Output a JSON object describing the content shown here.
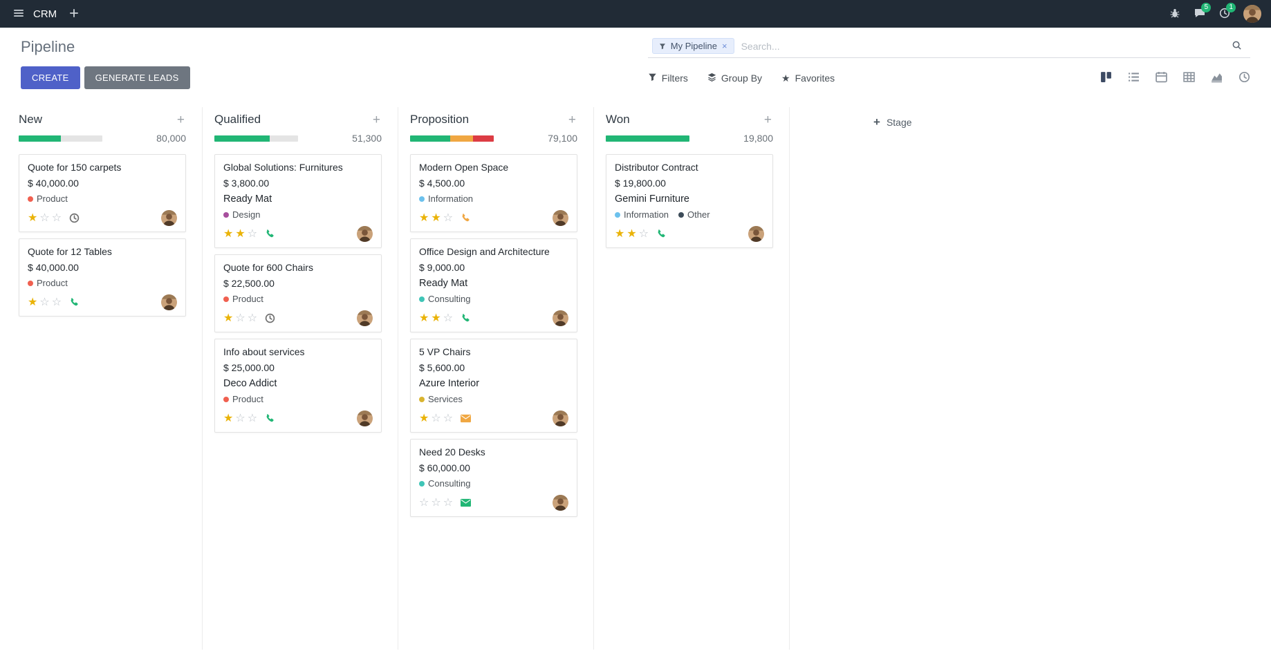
{
  "colors": {
    "accent": "#4f61c8",
    "success": "#21b675",
    "warning": "#f0a742",
    "danger": "#dc3c44",
    "progress_track": "#e4e4e4",
    "star_active": "#eab308"
  },
  "navbar": {
    "app_name": "CRM",
    "messages_badge": "5",
    "activities_badge": "1"
  },
  "control_panel": {
    "title": "Pipeline",
    "create_label": "CREATE",
    "generate_leads_label": "GENERATE LEADS",
    "search_facet": "My Pipeline",
    "search_placeholder": "Search...",
    "filters_label": "Filters",
    "group_by_label": "Group By",
    "favorites_label": "Favorites"
  },
  "board": {
    "add_stage_label": "Stage",
    "columns": [
      {
        "name": "New",
        "total": "80,000",
        "progress": [
          {
            "color": "#21b675",
            "pct": 50
          },
          {
            "color": "#e4e4e4",
            "pct": 50
          }
        ],
        "cards": [
          {
            "title": "Quote for 150 carpets",
            "amount": "$ 40,000.00",
            "partner": "",
            "tags": [
              {
                "label": "Product",
                "color": "#f06050"
              }
            ],
            "stars": 1,
            "activity": {
              "type": "clock",
              "color": "#707070"
            }
          },
          {
            "title": "Quote for 12 Tables",
            "amount": "$ 40,000.00",
            "partner": "",
            "tags": [
              {
                "label": "Product",
                "color": "#f06050"
              }
            ],
            "stars": 1,
            "activity": {
              "type": "phone",
              "color": "#21b675"
            }
          }
        ]
      },
      {
        "name": "Qualified",
        "total": "51,300",
        "progress": [
          {
            "color": "#21b675",
            "pct": 66
          },
          {
            "color": "#e4e4e4",
            "pct": 34
          }
        ],
        "cards": [
          {
            "title": "Global Solutions: Furnitures",
            "amount": "$ 3,800.00",
            "partner": "Ready Mat",
            "tags": [
              {
                "label": "Design",
                "color": "#a74f9d"
              }
            ],
            "stars": 2,
            "activity": {
              "type": "phone",
              "color": "#21b675"
            }
          },
          {
            "title": "Quote for 600 Chairs",
            "amount": "$ 22,500.00",
            "partner": "",
            "tags": [
              {
                "label": "Product",
                "color": "#f06050"
              }
            ],
            "stars": 1,
            "activity": {
              "type": "clock",
              "color": "#707070"
            }
          },
          {
            "title": "Info about services",
            "amount": "$ 25,000.00",
            "partner": "Deco Addict",
            "tags": [
              {
                "label": "Product",
                "color": "#f06050"
              }
            ],
            "stars": 1,
            "activity": {
              "type": "phone",
              "color": "#21b675"
            }
          }
        ]
      },
      {
        "name": "Proposition",
        "total": "79,100",
        "progress": [
          {
            "color": "#21b675",
            "pct": 48
          },
          {
            "color": "#f0a742",
            "pct": 27
          },
          {
            "color": "#dc3c44",
            "pct": 25
          }
        ],
        "cards": [
          {
            "title": "Modern Open Space",
            "amount": "$ 4,500.00",
            "partner": "",
            "tags": [
              {
                "label": "Information",
                "color": "#6cc1ed"
              }
            ],
            "stars": 2,
            "activity": {
              "type": "phone",
              "color": "#f0a742"
            }
          },
          {
            "title": "Office Design and Architecture",
            "amount": "$ 9,000.00",
            "partner": "Ready Mat",
            "tags": [
              {
                "label": "Consulting",
                "color": "#3fc5b7"
              }
            ],
            "stars": 2,
            "activity": {
              "type": "phone",
              "color": "#21b675"
            }
          },
          {
            "title": "5 VP Chairs",
            "amount": "$ 5,600.00",
            "partner": "Azure Interior",
            "tags": [
              {
                "label": "Services",
                "color": "#d9b430"
              }
            ],
            "stars": 1,
            "activity": {
              "type": "envelope",
              "color": "#f0a742"
            }
          },
          {
            "title": "Need 20 Desks",
            "amount": "$ 60,000.00",
            "partner": "",
            "tags": [
              {
                "label": "Consulting",
                "color": "#3fc5b7"
              }
            ],
            "stars": 0,
            "activity": {
              "type": "envelope",
              "color": "#21b675"
            }
          }
        ]
      },
      {
        "name": "Won",
        "total": "19,800",
        "progress": [
          {
            "color": "#21b675",
            "pct": 100
          }
        ],
        "cards": [
          {
            "title": "Distributor Contract",
            "amount": "$ 19,800.00",
            "partner": "Gemini Furniture",
            "tags": [
              {
                "label": "Information",
                "color": "#6cc1ed"
              },
              {
                "label": "Other",
                "color": "#3d4c59"
              }
            ],
            "stars": 2,
            "activity": {
              "type": "phone",
              "color": "#21b675"
            }
          }
        ]
      }
    ]
  }
}
